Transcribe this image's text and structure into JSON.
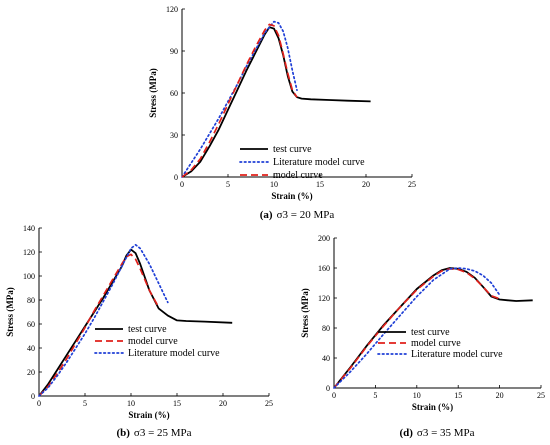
{
  "chart_data": [
    {
      "type": "line",
      "xlabel": "Strain (%)",
      "ylabel": "Stress (MPa)",
      "xlim": [
        0,
        25
      ],
      "ylim": [
        0,
        120
      ],
      "xticks": [
        0,
        5,
        10,
        15,
        20,
        25
      ],
      "yticks": [
        0,
        30,
        60,
        90,
        120
      ],
      "caption": {
        "letter": "(a)",
        "text": "σ3 = 20 MPa"
      },
      "legend": [
        "test curve",
        "Literature model curve",
        "model curve"
      ],
      "legend_position": "center-right",
      "series": [
        {
          "name": "test curve",
          "style": "solid",
          "color": "#000000",
          "x": [
            0,
            1,
            2,
            3,
            4,
            5,
            6,
            7,
            8,
            9,
            9.5,
            10,
            10.5,
            11,
            11.5,
            12,
            12.5,
            13,
            14,
            16,
            18,
            20.5
          ],
          "y": [
            0,
            4,
            11,
            22,
            34,
            48,
            62,
            76,
            89,
            102,
            107,
            106,
            99,
            87,
            72,
            61,
            57,
            56,
            55.5,
            55,
            54.5,
            54
          ]
        },
        {
          "name": "Literature model curve",
          "style": "dotted",
          "color": "#1f3fd6",
          "x": [
            0,
            1,
            2,
            3,
            4,
            5,
            6,
            7,
            8,
            9,
            10,
            10.5,
            11,
            11.5,
            12,
            12.5
          ],
          "y": [
            0,
            10,
            20,
            31,
            42,
            54,
            66,
            79,
            91,
            103,
            111,
            110,
            104,
            92,
            76,
            62
          ]
        },
        {
          "name": "model curve",
          "style": "dashed",
          "color": "#e0201b",
          "x": [
            0,
            1,
            2,
            3,
            4,
            5,
            6,
            7,
            8,
            9,
            9.5,
            10,
            10.5,
            11,
            11.5,
            12,
            12.5
          ],
          "y": [
            0,
            5,
            13,
            25,
            38,
            52,
            66,
            80,
            93,
            105,
            109,
            108,
            101,
            88,
            74,
            62,
            57
          ]
        }
      ]
    },
    {
      "type": "line",
      "xlabel": "Strain (%)",
      "ylabel": "Stress (MPa)",
      "xlim": [
        0,
        25
      ],
      "ylim": [
        0,
        140
      ],
      "xticks": [
        0,
        5,
        10,
        15,
        20,
        25
      ],
      "yticks": [
        0,
        20,
        40,
        60,
        80,
        100,
        120,
        140
      ],
      "caption": {
        "letter": "(b)",
        "text": "σ3 = 25 MPa"
      },
      "legend": [
        "test curve",
        "model curve",
        "Literature model curve"
      ],
      "legend_position": "center-right",
      "series": [
        {
          "name": "test curve",
          "style": "solid",
          "color": "#000000",
          "x": [
            0,
            1,
            2,
            3,
            4,
            5,
            6,
            7,
            8,
            9,
            9.5,
            10,
            10.5,
            11,
            12,
            13,
            14,
            15,
            16,
            18,
            21
          ],
          "y": [
            0,
            10,
            22,
            34,
            46,
            58,
            70,
            82,
            95,
            108,
            117,
            122,
            119,
            110,
            88,
            73,
            67,
            63,
            62.5,
            62,
            61
          ]
        },
        {
          "name": "model curve",
          "style": "dashed",
          "color": "#e0201b",
          "x": [
            0,
            1,
            2,
            3,
            4,
            5,
            6,
            7,
            8,
            9,
            9.5,
            10,
            10.5,
            11,
            12,
            13
          ],
          "y": [
            0,
            8,
            19,
            31,
            44,
            57,
            71,
            84,
            97,
            110,
            116,
            118,
            114,
            106,
            88,
            74
          ]
        },
        {
          "name": "Literature model curve",
          "style": "dotted",
          "color": "#1f3fd6",
          "x": [
            0,
            1,
            2,
            3,
            4,
            5,
            6,
            7,
            8,
            9,
            10,
            10.5,
            11,
            12,
            13,
            14
          ],
          "y": [
            0,
            7,
            17,
            28,
            40,
            52,
            65,
            79,
            93,
            108,
            123,
            126,
            123,
            110,
            94,
            78
          ]
        }
      ]
    },
    {
      "type": "line",
      "xlabel": "Strain (%)",
      "ylabel": "Stress (MPa)",
      "xlim": [
        0,
        25
      ],
      "ylim": [
        0,
        200
      ],
      "xticks": [
        0,
        5,
        10,
        15,
        20,
        25
      ],
      "yticks": [
        0,
        40,
        80,
        120,
        160,
        200
      ],
      "caption": {
        "letter": "(d)",
        "text": "σ3 = 35 MPa"
      },
      "legend": [
        "test curve",
        "model curve",
        "Literature model curve"
      ],
      "legend_position": "bottom-right",
      "series": [
        {
          "name": "test curve",
          "style": "solid",
          "color": "#000000",
          "x": [
            0,
            2,
            4,
            6,
            8,
            10,
            12,
            13,
            14,
            15,
            16,
            17,
            18,
            19,
            20,
            21,
            22,
            24
          ],
          "y": [
            0,
            28,
            57,
            84,
            108,
            132,
            150,
            157,
            160,
            159,
            155,
            147,
            135,
            122,
            118,
            117,
            116,
            117
          ]
        },
        {
          "name": "model curve",
          "style": "dashed",
          "color": "#e0201b",
          "x": [
            0,
            2,
            4,
            6,
            8,
            10,
            12,
            13,
            14,
            15,
            16,
            17,
            18,
            19,
            20
          ],
          "y": [
            0,
            27,
            56,
            83,
            108,
            131,
            149,
            156,
            159,
            158,
            154,
            146,
            135,
            123,
            119
          ]
        },
        {
          "name": "Literature model curve",
          "style": "dotted",
          "color": "#1f3fd6",
          "x": [
            0,
            2,
            4,
            6,
            8,
            10,
            12,
            14,
            15,
            16,
            17,
            18,
            19,
            20
          ],
          "y": [
            0,
            22,
            46,
            72,
            97,
            122,
            144,
            159,
            160,
            159,
            156,
            150,
            140,
            124
          ]
        }
      ]
    }
  ]
}
